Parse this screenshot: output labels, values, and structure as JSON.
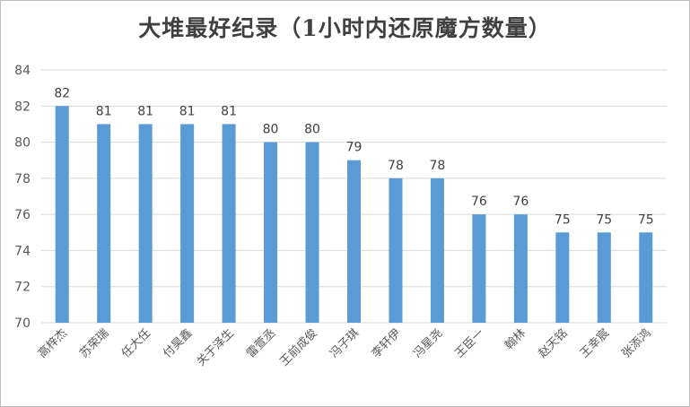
{
  "chart_data": {
    "type": "bar",
    "title": "大堆最好纪录（1小时内还原魔方数量）",
    "xlabel": "",
    "ylabel": "",
    "ylim": [
      70,
      84
    ],
    "yticks": [
      70,
      72,
      74,
      76,
      78,
      80,
      82,
      84
    ],
    "grid": true,
    "legend": "none",
    "bar_color": "#5b9bd5",
    "categories": [
      "高梓杰",
      "苏荣瑞",
      "任大任",
      "付昊鑫",
      "关于泽生",
      "雷萱丞",
      "王前成俊",
      "冯子琪",
      "李轩伊",
      "冯星尧",
      "王臣一",
      "翰林",
      "赵天铭",
      "王幸宸",
      "张添鸿"
    ],
    "values": [
      82,
      81,
      81,
      81,
      81,
      80,
      80,
      79,
      78,
      78,
      76,
      76,
      75,
      75,
      75
    ]
  }
}
